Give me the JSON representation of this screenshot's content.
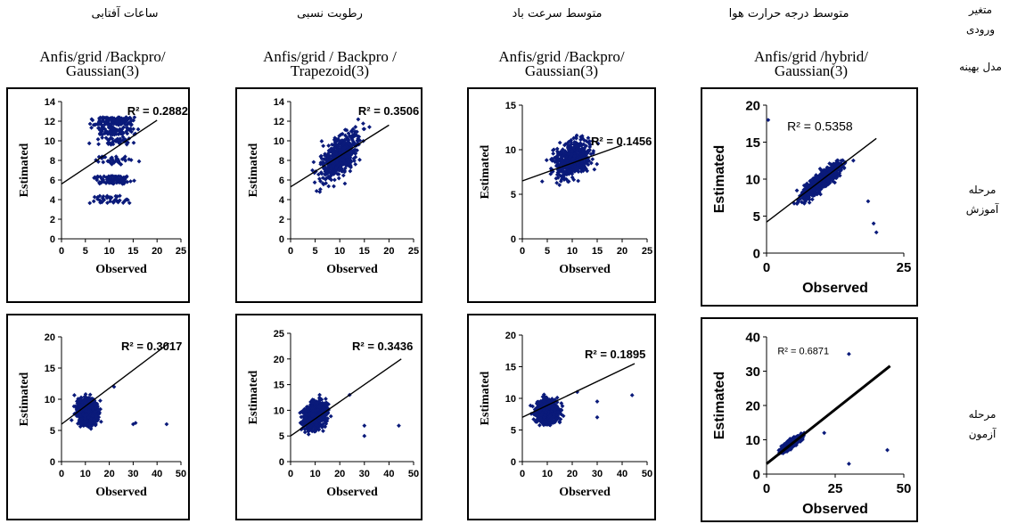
{
  "row_labels": {
    "variable": "متغیر ورودی",
    "model": "مدل بهینه",
    "train": "مرحله آموزش",
    "test": "مرحله آزمون"
  },
  "columns": [
    {
      "header": "ساعات آفتابی",
      "model_line1": "Anfis/grid /Backpro/",
      "model_line2": "Gaussian(3)"
    },
    {
      "header": "رطوبت نسبی",
      "model_line1": "Anfis/grid / Backpro /",
      "model_line2": "Trapezoid(3)"
    },
    {
      "header": "متوسط سرعت باد",
      "model_line1": "Anfis/grid /Backpro/",
      "model_line2": "Gaussian(3)"
    },
    {
      "header": "متوسط درجه حرارت هوا",
      "model_line1": "Anfis/grid /hybrid/",
      "model_line2": "Gaussian(3)"
    }
  ],
  "chart_data": [
    {
      "id": "train-sunshine",
      "type": "scatter",
      "xlabel": "Observed",
      "ylabel": "Estimated",
      "xlim": [
        0,
        25
      ],
      "ylim": [
        0,
        14
      ],
      "xticks": [
        0,
        5,
        10,
        15,
        20,
        25
      ],
      "yticks": [
        0,
        2,
        4,
        6,
        8,
        10,
        12,
        14
      ],
      "r2_label": "R² = 0.2882",
      "r2": 0.2882,
      "trendline": [
        [
          0,
          5.6
        ],
        [
          20,
          12.1
        ]
      ],
      "cloud": "a"
    },
    {
      "id": "train-humidity",
      "type": "scatter",
      "xlabel": "Observed",
      "ylabel": "Estimated",
      "xlim": [
        0,
        25
      ],
      "ylim": [
        0,
        14
      ],
      "xticks": [
        0,
        5,
        10,
        15,
        20,
        25
      ],
      "yticks": [
        0,
        2,
        4,
        6,
        8,
        10,
        12,
        14
      ],
      "r2_label": "R² = 0.3506",
      "r2": 0.3506,
      "trendline": [
        [
          0,
          5.3
        ],
        [
          20,
          11.6
        ]
      ],
      "cloud": "b"
    },
    {
      "id": "train-wind",
      "type": "scatter",
      "xlabel": "Observed",
      "ylabel": "Estimated",
      "xlim": [
        0,
        25
      ],
      "ylim": [
        0,
        15
      ],
      "xticks": [
        0,
        5,
        10,
        15,
        20,
        25
      ],
      "yticks": [
        0,
        5,
        10,
        15
      ],
      "r2_label": "R² = 0.1456",
      "r2": 0.1456,
      "trendline": [
        [
          0,
          6.5
        ],
        [
          20,
          10.5
        ]
      ],
      "cloud": "c"
    },
    {
      "id": "train-temperature",
      "type": "scatter",
      "xlabel": "Observed",
      "ylabel": "Estimated",
      "xlim": [
        0,
        25
      ],
      "ylim": [
        0,
        20
      ],
      "xticks": [
        0,
        25
      ],
      "yticks": [
        0,
        5,
        10,
        15,
        20
      ],
      "r2_label": "R² = 0.5358",
      "r2": 0.5358,
      "trendline": [
        [
          0,
          4.2
        ],
        [
          20,
          15.5
        ]
      ],
      "cloud": "d"
    },
    {
      "id": "test-sunshine",
      "type": "scatter",
      "xlabel": "Observed",
      "ylabel": "Estimated",
      "xlim": [
        0,
        50
      ],
      "ylim": [
        0,
        20
      ],
      "xticks": [
        0,
        10,
        20,
        30,
        40,
        50
      ],
      "yticks": [
        0,
        5,
        10,
        15,
        20
      ],
      "r2_label": "R² = 0.3017",
      "r2": 0.3017,
      "trendline": [
        [
          0,
          6.0
        ],
        [
          45,
          19.0
        ]
      ],
      "cloud": "e"
    },
    {
      "id": "test-humidity",
      "type": "scatter",
      "xlabel": "Observed",
      "ylabel": "Estimated",
      "xlim": [
        0,
        50
      ],
      "ylim": [
        0,
        25
      ],
      "xticks": [
        0,
        10,
        20,
        30,
        40,
        50
      ],
      "yticks": [
        0,
        5,
        10,
        15,
        20,
        25
      ],
      "r2_label": "R² = 0.3436",
      "r2": 0.3436,
      "trendline": [
        [
          0,
          5.0
        ],
        [
          45,
          20.0
        ]
      ],
      "cloud": "f"
    },
    {
      "id": "test-wind",
      "type": "scatter",
      "xlabel": "Observed",
      "ylabel": "Estimated",
      "xlim": [
        0,
        50
      ],
      "ylim": [
        0,
        20
      ],
      "xticks": [
        0,
        10,
        20,
        30,
        40,
        50
      ],
      "yticks": [
        0,
        5,
        10,
        15,
        20
      ],
      "r2_label": "R² = 0.1895",
      "r2": 0.1895,
      "trendline": [
        [
          0,
          7.0
        ],
        [
          45,
          15.5
        ]
      ],
      "cloud": "g"
    },
    {
      "id": "test-temperature",
      "type": "scatter",
      "xlabel": "Observed",
      "ylabel": "Estimated",
      "xlim": [
        0,
        50
      ],
      "ylim": [
        0,
        40
      ],
      "xticks": [
        0,
        25,
        50
      ],
      "yticks": [
        0,
        10,
        20,
        30,
        40
      ],
      "r2_label": "R² = 0.6871",
      "r2": 0.6871,
      "trendline": [
        [
          0,
          3.0
        ],
        [
          45,
          31.5
        ]
      ],
      "cloud": "h"
    }
  ],
  "colors": {
    "marker": "#0a1a7a",
    "trendline": "#000000",
    "axis": "#000000"
  }
}
